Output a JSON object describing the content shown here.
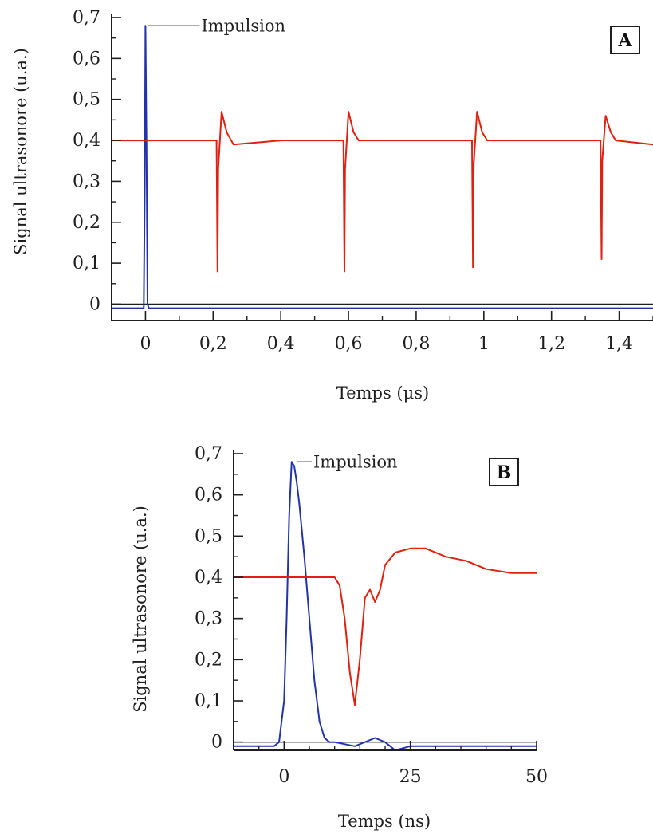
{
  "colors": {
    "impulse": "#2233aa",
    "signal": "#e02010",
    "axis": "#1e1e1e"
  },
  "chart_data": [
    {
      "type": "line",
      "panel_label": "A",
      "xlabel": "Temps (μs)",
      "ylabel": "Signal ultrasonore (u.a.)",
      "xlim": [
        -0.1,
        1.5
      ],
      "ylim": [
        -0.04,
        0.7
      ],
      "xticks": [
        0,
        0.2,
        0.4,
        0.6,
        0.8,
        1,
        1.2,
        1.4
      ],
      "xtick_labels": [
        "0",
        "0,2",
        "0,4",
        "0,6",
        "0,8",
        "1",
        "1,2",
        "1,4"
      ],
      "yticks": [
        0,
        0.1,
        0.2,
        0.3,
        0.4,
        0.5,
        0.6,
        0.7
      ],
      "ytick_labels": [
        "0",
        "0,1",
        "0,2",
        "0,3",
        "0,4",
        "0,5",
        "0,6",
        "0,7"
      ],
      "zero_line": true,
      "annotations": [
        {
          "text": "Impulsion",
          "x": 0,
          "y": 0.68
        }
      ],
      "series": [
        {
          "color": "#2233aa",
          "x": [
            -0.1,
            -0.005,
            -0.002,
            0,
            0.003,
            0.006,
            0.01,
            0.02,
            0.05,
            0.3,
            0.6,
            0.9,
            1.2,
            1.5
          ],
          "y": [
            -0.01,
            -0.01,
            0.3,
            0.68,
            0.4,
            0.0,
            -0.01,
            -0.01,
            -0.01,
            -0.01,
            -0.01,
            -0.01,
            -0.01,
            -0.01
          ]
        },
        {
          "color": "#e02010",
          "x": [
            -0.1,
            0.1,
            0.21,
            0.213,
            0.215,
            0.225,
            0.24,
            0.26,
            0.4,
            0.585,
            0.588,
            0.59,
            0.6,
            0.615,
            0.63,
            0.8,
            0.965,
            0.968,
            0.97,
            0.98,
            0.995,
            1.01,
            1.2,
            1.345,
            1.348,
            1.35,
            1.36,
            1.375,
            1.39,
            1.5
          ],
          "y": [
            0.4,
            0.4,
            0.4,
            0.08,
            0.33,
            0.47,
            0.42,
            0.39,
            0.4,
            0.4,
            0.08,
            0.33,
            0.47,
            0.42,
            0.4,
            0.4,
            0.4,
            0.09,
            0.34,
            0.47,
            0.42,
            0.4,
            0.4,
            0.4,
            0.11,
            0.35,
            0.46,
            0.42,
            0.4,
            0.39
          ]
        }
      ]
    },
    {
      "type": "line",
      "panel_label": "B",
      "xlabel": "Temps (ns)",
      "ylabel": "Signal ultrasonore (u.a.)",
      "xlim": [
        -10,
        50
      ],
      "ylim": [
        -0.02,
        0.7
      ],
      "xticks": [
        0,
        25,
        50
      ],
      "xtick_labels": [
        "0",
        "25",
        "50"
      ],
      "yticks": [
        0,
        0.1,
        0.2,
        0.3,
        0.4,
        0.5,
        0.6,
        0.7
      ],
      "ytick_labels": [
        "0",
        "0,1",
        "0,2",
        "0,3",
        "0,4",
        "0,5",
        "0,6",
        "0,7"
      ],
      "zero_line": true,
      "annotations": [
        {
          "text": "Impulsion",
          "x": 2,
          "y": 0.68
        }
      ],
      "series": [
        {
          "color": "#2233aa",
          "x": [
            -10,
            -2,
            -1,
            0,
            0.5,
            1,
            1.5,
            2,
            2.5,
            3,
            4,
            5,
            6,
            7,
            8,
            9,
            10,
            14,
            18,
            20,
            22,
            25,
            30,
            35,
            40,
            45,
            50
          ],
          "y": [
            -0.01,
            -0.01,
            0.0,
            0.1,
            0.3,
            0.55,
            0.68,
            0.67,
            0.63,
            0.58,
            0.45,
            0.3,
            0.15,
            0.05,
            0.01,
            0.0,
            0.0,
            -0.01,
            0.01,
            0.0,
            -0.02,
            -0.01,
            -0.01,
            -0.01,
            -0.01,
            -0.01,
            -0.01
          ]
        },
        {
          "color": "#e02010",
          "x": [
            -10,
            0,
            5,
            10,
            11,
            12,
            13,
            14,
            15,
            16,
            17,
            18,
            19,
            20,
            22,
            25,
            28,
            32,
            36,
            40,
            45,
            50
          ],
          "y": [
            0.4,
            0.4,
            0.4,
            0.4,
            0.38,
            0.3,
            0.17,
            0.09,
            0.2,
            0.35,
            0.37,
            0.34,
            0.37,
            0.43,
            0.46,
            0.47,
            0.47,
            0.45,
            0.44,
            0.42,
            0.41,
            0.41
          ]
        }
      ]
    }
  ]
}
